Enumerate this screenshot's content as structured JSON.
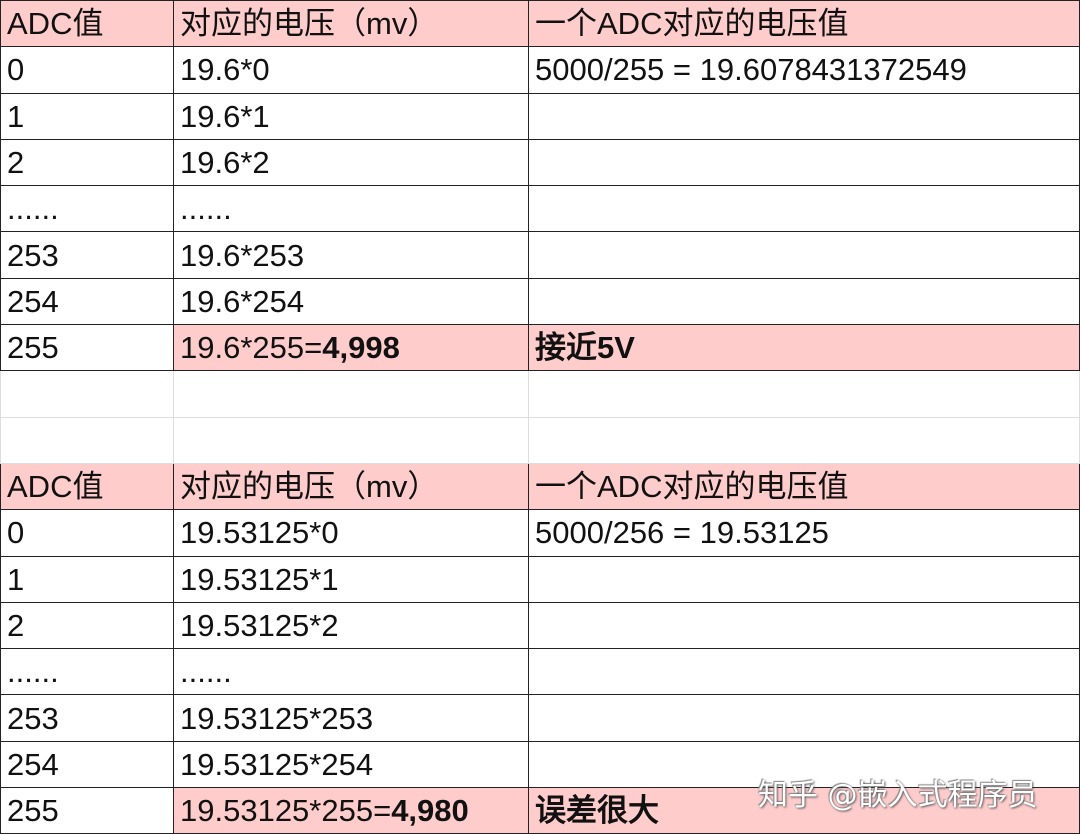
{
  "colors": {
    "highlight": "#ffcccc",
    "border": "#222222"
  },
  "table1": {
    "header": [
      "ADC值",
      "对应的电压（mv）",
      "一个ADC对应的电压值"
    ],
    "rows": [
      [
        "0",
        "19.6*0",
        "5000/255 = 19.6078431372549"
      ],
      [
        "1",
        "19.6*1",
        ""
      ],
      [
        "2",
        "19.6*2",
        ""
      ],
      [
        "......",
        "......",
        ""
      ],
      [
        "253",
        "19.6*253",
        ""
      ],
      [
        "254",
        "19.6*254",
        ""
      ]
    ],
    "last": {
      "adc": "255",
      "formula": "19.6*255=",
      "result": "4,998",
      "note": "接近5V"
    }
  },
  "table2": {
    "header": [
      "ADC值",
      "对应的电压（mv）",
      "一个ADC对应的电压值"
    ],
    "rows": [
      [
        "0",
        "19.53125*0",
        "5000/256 = 19.53125"
      ],
      [
        "1",
        "19.53125*1",
        ""
      ],
      [
        "2",
        "19.53125*2",
        ""
      ],
      [
        "......",
        "......",
        ""
      ],
      [
        "253",
        "19.53125*253",
        ""
      ],
      [
        "254",
        "19.53125*254",
        ""
      ]
    ],
    "last": {
      "adc": "255",
      "formula": "19.53125*255=",
      "result": "4,980",
      "note": "误差很大"
    }
  },
  "watermark": "知乎 @嵌入式程序员"
}
